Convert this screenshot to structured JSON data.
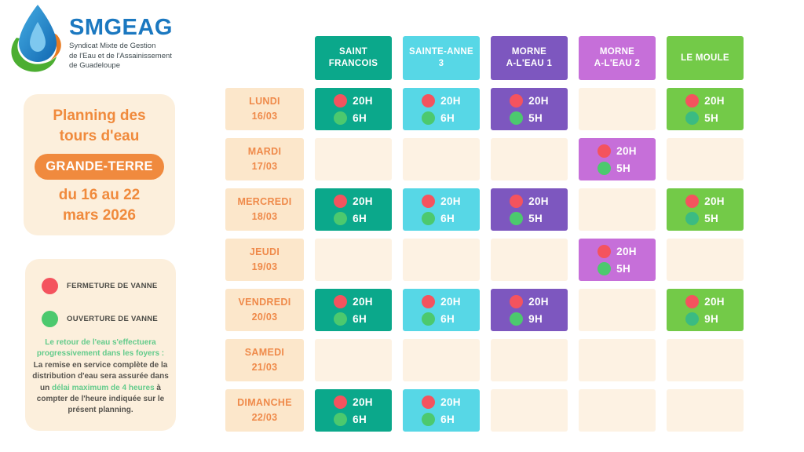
{
  "logo": {
    "title": "SMGEAG",
    "subtitle": "Syndicat Mixte de Gestion\nde l'Eau et de l'Assainissement\nde Guadeloupe"
  },
  "info_panel": {
    "title": "Planning des\ntours d'eau",
    "badge": "GRANDE-TERRE",
    "period": "du 16 au 22\nmars 2026"
  },
  "legend_panel": {
    "close_label": "FERMETURE DE VANNE",
    "open_label": "OUVERTURE DE VANNE",
    "note_green_intro": "Le retour de l'eau s'effectuera progressivement dans les foyers :",
    "note_dark_1": "La remise en service complète de la distribution d'eau sera assurée dans un ",
    "note_green_highlight": "délai maximum de 4 heures",
    "note_dark_2": " à compter de l'heure indiquée sur le présent planning."
  },
  "colors": {
    "valve_close": "#F4535E",
    "valve_open": "#4CC96E",
    "orange_accent": "#F08A3E",
    "panel_bg": "#FCEFDC",
    "empty_cell": "#FDF2E3",
    "day_cell": "#FCE7CB",
    "logo_blue": "#1B78C0"
  },
  "schedule": {
    "columns": [
      {
        "id": "saint-francois",
        "label": "SAINT\nFRANCOIS",
        "color": "#0BA88B"
      },
      {
        "id": "sainte-anne-3",
        "label": "SAINTE-ANNE\n3",
        "color": "#57D7E6"
      },
      {
        "id": "morne-a-leau-1",
        "label": "MORNE\nA-L'EAU 1",
        "color": "#7D57BF"
      },
      {
        "id": "morne-a-leau-2",
        "label": "MORNE\nA-L'EAU 2",
        "color": "#C66FD9"
      },
      {
        "id": "le-moule",
        "label": "LE MOULE",
        "color": "#73CA48",
        "open_dot": "#3BBB82"
      }
    ],
    "rows": [
      {
        "id": "lundi",
        "day": "LUNDI",
        "date": "16/03",
        "cells": [
          {
            "close": "20H",
            "open": "6H"
          },
          {
            "close": "20H",
            "open": "6H"
          },
          {
            "close": "20H",
            "open": "5H"
          },
          null,
          {
            "close": "20H",
            "open": "5H"
          }
        ]
      },
      {
        "id": "mardi",
        "day": "MARDI",
        "date": "17/03",
        "cells": [
          null,
          null,
          null,
          {
            "close": "20H",
            "open": "5H"
          },
          null
        ]
      },
      {
        "id": "mercredi",
        "day": "MERCREDI",
        "date": "18/03",
        "cells": [
          {
            "close": "20H",
            "open": "6H"
          },
          {
            "close": "20H",
            "open": "6H"
          },
          {
            "close": "20H",
            "open": "5H"
          },
          null,
          {
            "close": "20H",
            "open": "5H"
          }
        ]
      },
      {
        "id": "jeudi",
        "day": "JEUDI",
        "date": "19/03",
        "cells": [
          null,
          null,
          null,
          {
            "close": "20H",
            "open": "5H"
          },
          null
        ]
      },
      {
        "id": "vendredi",
        "day": "VENDREDI",
        "date": "20/03",
        "cells": [
          {
            "close": "20H",
            "open": "6H"
          },
          {
            "close": "20H",
            "open": "6H"
          },
          {
            "close": "20H",
            "open": "9H"
          },
          null,
          {
            "close": "20H",
            "open": "9H"
          }
        ]
      },
      {
        "id": "samedi",
        "day": "SAMEDI",
        "date": "21/03",
        "cells": [
          null,
          null,
          null,
          null,
          null
        ]
      },
      {
        "id": "dimanche",
        "day": "DIMANCHE",
        "date": "22/03",
        "cells": [
          {
            "close": "20H",
            "open": "6H"
          },
          {
            "close": "20H",
            "open": "6H"
          },
          null,
          null,
          null
        ]
      }
    ]
  }
}
